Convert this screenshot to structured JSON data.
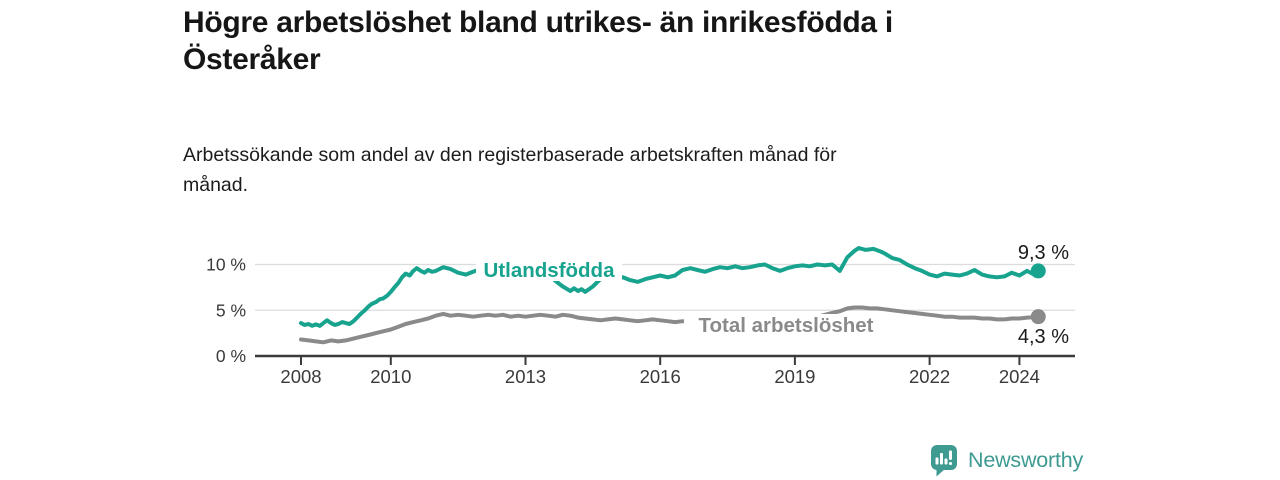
{
  "title": "Högre arbetslöshet bland utrikes- än inrikesfödda i\nÖsteråker",
  "subtitle": "Arbetssökande som andel av den registerbaserade arbetskraften månad för\nmånad.",
  "branding": {
    "logo_text": "Newsworthy"
  },
  "colors": {
    "foreign_line": "#17a38e",
    "total_line": "#8a8a8a",
    "grid": "#dcdcdc",
    "axis": "#3b3b3b",
    "tick_text": "#3a3a3a",
    "value_text": "#1a1a1a",
    "brand_teal": "#3f9a92"
  },
  "chart_data": {
    "type": "line",
    "title": "Högre arbetslöshet bland utrikes- än inrikesfödda i Österåker",
    "subtitle": "Arbetssökande som andel av den registerbaserade arbetskraften månad för månad.",
    "xlabel": "",
    "ylabel": "",
    "x_range": [
      2007.0,
      2025.2
    ],
    "y_range": [
      0,
      12.5
    ],
    "grid": "horizontal",
    "x_ticks": [
      {
        "value": 2008,
        "label": "2008"
      },
      {
        "value": 2010,
        "label": "2010"
      },
      {
        "value": 2013,
        "label": "2013"
      },
      {
        "value": 2016,
        "label": "2016"
      },
      {
        "value": 2019,
        "label": "2019"
      },
      {
        "value": 2022,
        "label": "2022"
      },
      {
        "value": 2024,
        "label": "2024"
      }
    ],
    "y_ticks": [
      {
        "value": 0,
        "label": "0 %"
      },
      {
        "value": 5,
        "label": "5 %"
      },
      {
        "value": 10,
        "label": "10 %"
      }
    ],
    "series": [
      {
        "name": "Utlandsfödda",
        "color": "#17a38e",
        "end_value": 9.3,
        "end_label": "9,3 %",
        "points": [
          [
            2008.0,
            3.6
          ],
          [
            2008.08,
            3.4
          ],
          [
            2008.17,
            3.5
          ],
          [
            2008.25,
            3.3
          ],
          [
            2008.33,
            3.45
          ],
          [
            2008.42,
            3.3
          ],
          [
            2008.5,
            3.6
          ],
          [
            2008.58,
            3.9
          ],
          [
            2008.67,
            3.6
          ],
          [
            2008.75,
            3.4
          ],
          [
            2008.83,
            3.5
          ],
          [
            2008.92,
            3.7
          ],
          [
            2009.0,
            3.6
          ],
          [
            2009.08,
            3.5
          ],
          [
            2009.17,
            3.8
          ],
          [
            2009.25,
            4.2
          ],
          [
            2009.33,
            4.6
          ],
          [
            2009.42,
            5.0
          ],
          [
            2009.5,
            5.4
          ],
          [
            2009.58,
            5.7
          ],
          [
            2009.67,
            5.9
          ],
          [
            2009.75,
            6.2
          ],
          [
            2009.83,
            6.3
          ],
          [
            2009.92,
            6.6
          ],
          [
            2010.0,
            7.0
          ],
          [
            2010.08,
            7.5
          ],
          [
            2010.17,
            8.0
          ],
          [
            2010.25,
            8.6
          ],
          [
            2010.33,
            9.0
          ],
          [
            2010.42,
            8.8
          ],
          [
            2010.5,
            9.3
          ],
          [
            2010.58,
            9.6
          ],
          [
            2010.67,
            9.3
          ],
          [
            2010.75,
            9.1
          ],
          [
            2010.83,
            9.4
          ],
          [
            2010.92,
            9.2
          ],
          [
            2011.0,
            9.3
          ],
          [
            2011.17,
            9.7
          ],
          [
            2011.33,
            9.5
          ],
          [
            2011.5,
            9.1
          ],
          [
            2011.67,
            8.9
          ],
          [
            2011.83,
            9.2
          ],
          [
            2012.0,
            9.5
          ],
          [
            2012.17,
            9.3
          ],
          [
            2012.33,
            9.6
          ],
          [
            2012.5,
            9.5
          ],
          [
            2012.67,
            9.4
          ],
          [
            2012.83,
            9.5
          ],
          [
            2013.0,
            9.6
          ],
          [
            2013.17,
            9.4
          ],
          [
            2013.33,
            9.3
          ],
          [
            2013.5,
            8.9
          ],
          [
            2013.67,
            8.2
          ],
          [
            2013.83,
            7.6
          ],
          [
            2014.0,
            7.1
          ],
          [
            2014.08,
            7.4
          ],
          [
            2014.17,
            7.1
          ],
          [
            2014.25,
            7.3
          ],
          [
            2014.33,
            7.0
          ],
          [
            2014.5,
            7.6
          ],
          [
            2014.67,
            8.4
          ],
          [
            2014.83,
            8.6
          ],
          [
            2015.0,
            8.4
          ],
          [
            2015.17,
            8.6
          ],
          [
            2015.33,
            8.3
          ],
          [
            2015.5,
            8.1
          ],
          [
            2015.67,
            8.4
          ],
          [
            2015.83,
            8.6
          ],
          [
            2016.0,
            8.8
          ],
          [
            2016.17,
            8.6
          ],
          [
            2016.33,
            8.8
          ],
          [
            2016.5,
            9.4
          ],
          [
            2016.67,
            9.6
          ],
          [
            2016.83,
            9.4
          ],
          [
            2017.0,
            9.2
          ],
          [
            2017.17,
            9.5
          ],
          [
            2017.33,
            9.7
          ],
          [
            2017.5,
            9.6
          ],
          [
            2017.67,
            9.8
          ],
          [
            2017.83,
            9.6
          ],
          [
            2018.0,
            9.7
          ],
          [
            2018.17,
            9.9
          ],
          [
            2018.33,
            10.0
          ],
          [
            2018.5,
            9.6
          ],
          [
            2018.67,
            9.3
          ],
          [
            2018.83,
            9.6
          ],
          [
            2019.0,
            9.8
          ],
          [
            2019.17,
            9.9
          ],
          [
            2019.33,
            9.8
          ],
          [
            2019.5,
            10.0
          ],
          [
            2019.67,
            9.9
          ],
          [
            2019.83,
            10.0
          ],
          [
            2020.0,
            9.3
          ],
          [
            2020.17,
            10.8
          ],
          [
            2020.33,
            11.5
          ],
          [
            2020.42,
            11.8
          ],
          [
            2020.58,
            11.6
          ],
          [
            2020.75,
            11.7
          ],
          [
            2020.92,
            11.4
          ],
          [
            2021.0,
            11.2
          ],
          [
            2021.17,
            10.7
          ],
          [
            2021.33,
            10.5
          ],
          [
            2021.5,
            10.0
          ],
          [
            2021.67,
            9.6
          ],
          [
            2021.83,
            9.3
          ],
          [
            2022.0,
            8.9
          ],
          [
            2022.17,
            8.7
          ],
          [
            2022.33,
            9.0
          ],
          [
            2022.5,
            8.9
          ],
          [
            2022.67,
            8.8
          ],
          [
            2022.83,
            9.0
          ],
          [
            2023.0,
            9.4
          ],
          [
            2023.17,
            8.9
          ],
          [
            2023.33,
            8.7
          ],
          [
            2023.5,
            8.6
          ],
          [
            2023.67,
            8.7
          ],
          [
            2023.83,
            9.1
          ],
          [
            2024.0,
            8.8
          ],
          [
            2024.17,
            9.3
          ],
          [
            2024.33,
            8.9
          ],
          [
            2024.42,
            9.3
          ]
        ]
      },
      {
        "name": "Total arbetslöshet",
        "color": "#8a8a8a",
        "end_value": 4.3,
        "end_label": "4,3 %",
        "points": [
          [
            2008.0,
            1.8
          ],
          [
            2008.17,
            1.7
          ],
          [
            2008.33,
            1.6
          ],
          [
            2008.5,
            1.5
          ],
          [
            2008.67,
            1.7
          ],
          [
            2008.83,
            1.6
          ],
          [
            2009.0,
            1.7
          ],
          [
            2009.17,
            1.9
          ],
          [
            2009.33,
            2.1
          ],
          [
            2009.5,
            2.3
          ],
          [
            2009.67,
            2.5
          ],
          [
            2009.83,
            2.7
          ],
          [
            2010.0,
            2.9
          ],
          [
            2010.17,
            3.2
          ],
          [
            2010.33,
            3.5
          ],
          [
            2010.5,
            3.7
          ],
          [
            2010.67,
            3.9
          ],
          [
            2010.83,
            4.1
          ],
          [
            2011.0,
            4.4
          ],
          [
            2011.17,
            4.6
          ],
          [
            2011.33,
            4.4
          ],
          [
            2011.5,
            4.5
          ],
          [
            2011.67,
            4.4
          ],
          [
            2011.83,
            4.3
          ],
          [
            2012.0,
            4.4
          ],
          [
            2012.17,
            4.5
          ],
          [
            2012.33,
            4.4
          ],
          [
            2012.5,
            4.5
          ],
          [
            2012.67,
            4.3
          ],
          [
            2012.83,
            4.4
          ],
          [
            2013.0,
            4.3
          ],
          [
            2013.17,
            4.4
          ],
          [
            2013.33,
            4.5
          ],
          [
            2013.5,
            4.4
          ],
          [
            2013.67,
            4.3
          ],
          [
            2013.83,
            4.5
          ],
          [
            2014.0,
            4.4
          ],
          [
            2014.17,
            4.2
          ],
          [
            2014.33,
            4.1
          ],
          [
            2014.5,
            4.0
          ],
          [
            2014.67,
            3.9
          ],
          [
            2014.83,
            4.0
          ],
          [
            2015.0,
            4.1
          ],
          [
            2015.17,
            4.0
          ],
          [
            2015.33,
            3.9
          ],
          [
            2015.5,
            3.8
          ],
          [
            2015.67,
            3.9
          ],
          [
            2015.83,
            4.0
          ],
          [
            2016.0,
            3.9
          ],
          [
            2016.17,
            3.8
          ],
          [
            2016.33,
            3.7
          ],
          [
            2016.5,
            3.8
          ],
          [
            2016.67,
            3.7
          ],
          [
            2016.83,
            3.8
          ],
          [
            2017.0,
            3.8
          ],
          [
            2017.25,
            3.9
          ],
          [
            2017.5,
            3.8
          ],
          [
            2017.75,
            3.9
          ],
          [
            2018.0,
            3.9
          ],
          [
            2018.25,
            3.8
          ],
          [
            2018.5,
            3.9
          ],
          [
            2018.75,
            4.0
          ],
          [
            2019.0,
            4.0
          ],
          [
            2019.17,
            4.1
          ],
          [
            2019.33,
            4.2
          ],
          [
            2019.5,
            4.3
          ],
          [
            2019.67,
            4.5
          ],
          [
            2019.83,
            4.7
          ],
          [
            2020.0,
            4.9
          ],
          [
            2020.17,
            5.2
          ],
          [
            2020.33,
            5.3
          ],
          [
            2020.5,
            5.3
          ],
          [
            2020.67,
            5.2
          ],
          [
            2020.83,
            5.2
          ],
          [
            2021.0,
            5.1
          ],
          [
            2021.17,
            5.0
          ],
          [
            2021.33,
            4.9
          ],
          [
            2021.5,
            4.8
          ],
          [
            2021.67,
            4.7
          ],
          [
            2021.83,
            4.6
          ],
          [
            2022.0,
            4.5
          ],
          [
            2022.17,
            4.4
          ],
          [
            2022.33,
            4.3
          ],
          [
            2022.5,
            4.3
          ],
          [
            2022.67,
            4.2
          ],
          [
            2022.83,
            4.2
          ],
          [
            2023.0,
            4.2
          ],
          [
            2023.17,
            4.1
          ],
          [
            2023.33,
            4.1
          ],
          [
            2023.5,
            4.0
          ],
          [
            2023.67,
            4.0
          ],
          [
            2023.83,
            4.1
          ],
          [
            2024.0,
            4.1
          ],
          [
            2024.17,
            4.2
          ],
          [
            2024.33,
            4.25
          ],
          [
            2024.42,
            4.3
          ]
        ]
      }
    ],
    "legend_position": "inline-labels"
  }
}
